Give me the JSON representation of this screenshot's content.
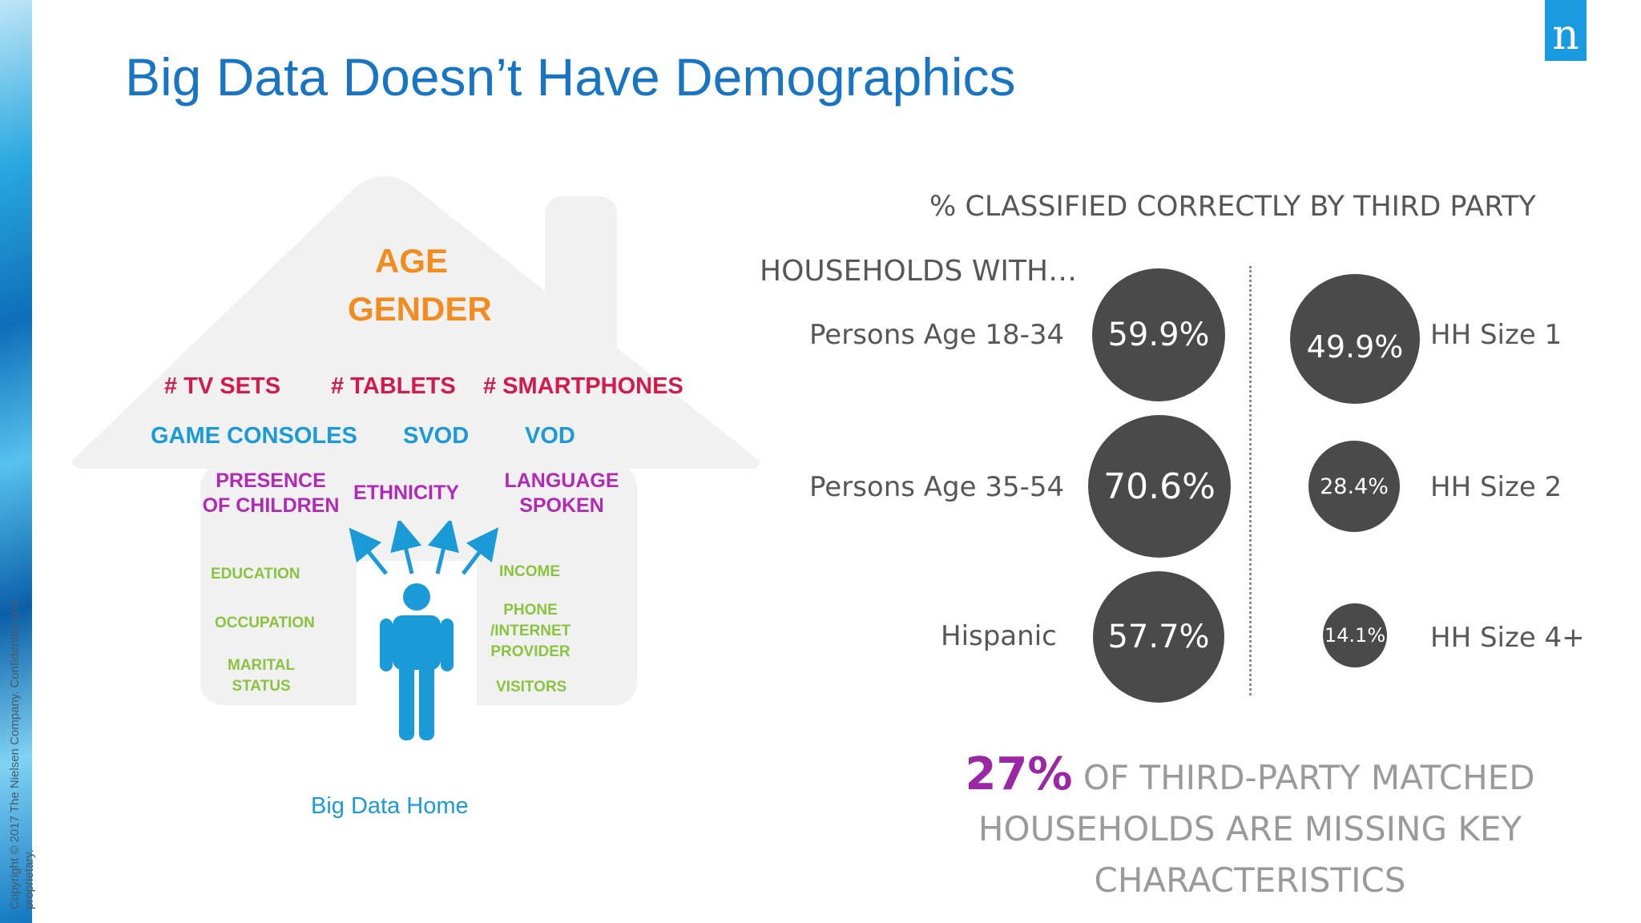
{
  "title": "Big Data Doesn’t Have Demographics",
  "logo": "n",
  "copyright": "Copyright © 2017 The Nielsen Company. Confidential and proprietary.",
  "house": {
    "caption": "Big Data Home",
    "age": "AGE",
    "gender": "GENDER",
    "devices": [
      "# TV SETS",
      "# TABLETS",
      "# SMARTPHONES"
    ],
    "services": [
      "GAME CONSOLES",
      "SVOD",
      "VOD"
    ],
    "presence_of_children": [
      "PRESENCE",
      "OF CHILDREN"
    ],
    "ethnicity": "ETHNICITY",
    "language_spoken": [
      "LANGUAGE",
      "SPOKEN"
    ],
    "education": "EDUCATION",
    "occupation": "OCCUPATION",
    "marital_status": [
      "MARITAL",
      "STATUS"
    ],
    "income": "INCOME",
    "phone_provider": [
      "PHONE",
      "/INTERNET",
      "PROVIDER"
    ],
    "visitors": "VISITORS",
    "colors": {
      "orange": "#f28c1e",
      "red": "#d21a4c",
      "blue": "#1a9ad6",
      "purple": "#b12ab6",
      "green": "#8ac33f"
    }
  },
  "panel": {
    "heading": "% CLASSIFIED CORRECTLY BY THIRD PARTY",
    "households_with": "HOUSEHOLDS WITH…",
    "left": [
      {
        "label": "Persons Age 18-34",
        "value": "59.9%"
      },
      {
        "label": "Persons Age 35-54",
        "value": "70.6%"
      },
      {
        "label": "Hispanic",
        "value": "57.7%"
      }
    ],
    "right": [
      {
        "label": "HH Size 1",
        "value": "49.9%"
      },
      {
        "label": "HH Size 2",
        "value": "28.4%"
      },
      {
        "label": "HH Size 4+",
        "value": "14.1%"
      }
    ],
    "callout_percent": "27%",
    "callout_line1": "OF THIRD-PARTY MATCHED",
    "callout_line2": "HOUSEHOLDS ARE MISSING KEY",
    "callout_line3": "CHARACTERISTICS",
    "circle_color": "#4a4a4a"
  }
}
